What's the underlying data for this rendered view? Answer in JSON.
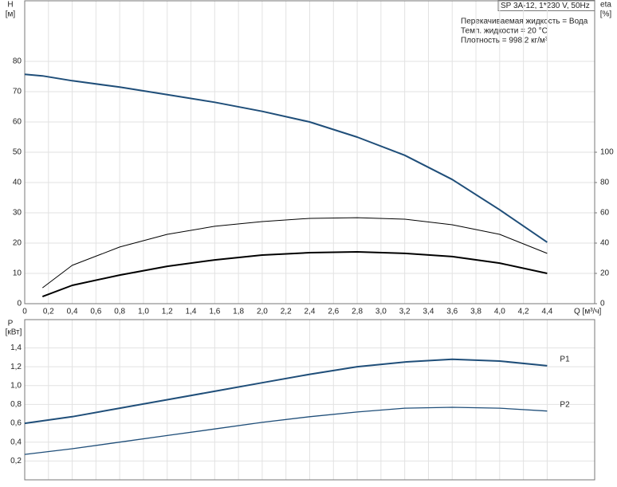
{
  "chart_data": [
    {
      "type": "line",
      "title": "SP 3A-12, 1*230 V, 50Hz",
      "notes": [
        "Перекачиваемая жидкость = Вода",
        "Темп. жидкости = 20 °C",
        "Плотность = 998.2 кг/м³"
      ],
      "ylabel": [
        "H",
        "[м]"
      ],
      "y2label": [
        "eta",
        "[%]"
      ],
      "xlabel": "Q [м³/ч]",
      "x": [
        0,
        0.15,
        0.4,
        0.8,
        1.2,
        1.6,
        2.0,
        2.4,
        2.8,
        3.2,
        3.6,
        4.0,
        4.4
      ],
      "xlim": [
        0,
        4.8
      ],
      "ylim": [
        0,
        100
      ],
      "y2lim": [
        0,
        200
      ],
      "grid": true,
      "xticks": [
        0,
        {
          "value": 0.2,
          "label": "0,2"
        },
        {
          "value": 0.4,
          "label": "0,4"
        },
        {
          "value": 0.6,
          "label": "0,6"
        },
        {
          "value": 0.8,
          "label": "0,8"
        },
        {
          "value": 1.0,
          "label": "1,0"
        },
        {
          "value": 1.2,
          "label": "1,2"
        },
        {
          "value": 1.4,
          "label": "1,4"
        },
        {
          "value": 1.6,
          "label": "1,6"
        },
        {
          "value": 1.8,
          "label": "1,8"
        },
        {
          "value": 2.0,
          "label": "2,0"
        },
        {
          "value": 2.2,
          "label": "2,2"
        },
        {
          "value": 2.4,
          "label": "2,4"
        },
        {
          "value": 2.6,
          "label": "2,6"
        },
        {
          "value": 2.8,
          "label": "2,8"
        },
        {
          "value": 3.0,
          "label": "3,0"
        },
        {
          "value": 3.2,
          "label": "3,2"
        },
        {
          "value": 3.4,
          "label": "3,4"
        },
        {
          "value": 3.6,
          "label": "3,6"
        },
        {
          "value": 3.8,
          "label": "3,8"
        },
        {
          "value": 4.0,
          "label": "4,0"
        },
        {
          "value": 4.2,
          "label": "4,2"
        },
        {
          "value": 4.4,
          "label": "4,4"
        }
      ],
      "yticks": [
        0,
        10,
        20,
        30,
        40,
        50,
        60,
        70,
        80
      ],
      "y2ticks": [
        0,
        20,
        40,
        60,
        80,
        100
      ],
      "series": [
        {
          "color": "#1f4e79",
          "line_width": 2,
          "values": [
            75.7,
            75.2,
            73.6,
            71.5,
            69,
            66.5,
            63.5,
            60,
            55,
            49,
            41,
            31,
            20.3
          ]
        },
        {
          "color": "#000000",
          "line_width": 1,
          "axis": "y2",
          "values": [
            null,
            10.5,
            25.3,
            37.4,
            45.8,
            51.1,
            54.2,
            56.3,
            56.8,
            55.8,
            52.1,
            45.8,
            33.2
          ]
        },
        {
          "color": "#000000",
          "line_width": 2,
          "axis": "y2",
          "values": [
            null,
            4.7,
            12.1,
            18.9,
            24.7,
            28.9,
            32.1,
            33.7,
            34.2,
            33.2,
            31.1,
            26.8,
            20
          ]
        }
      ]
    },
    {
      "type": "line",
      "ylabel": [
        "P",
        "[кВт]"
      ],
      "x": [
        0,
        0.4,
        0.8,
        1.2,
        1.6,
        2.0,
        2.4,
        2.8,
        3.2,
        3.6,
        4.0,
        4.4
      ],
      "xlim": [
        0,
        4.8
      ],
      "ylim": [
        0,
        1.7
      ],
      "grid": true,
      "yticks": [
        {
          "value": 0.2,
          "label": "0,2"
        },
        {
          "value": 0.4,
          "label": "0,4"
        },
        {
          "value": 0.6,
          "label": "0,6"
        },
        {
          "value": 0.8,
          "label": "0,8"
        },
        {
          "value": 1.0,
          "label": "1,0"
        },
        {
          "value": 1.2,
          "label": "1,2"
        },
        {
          "value": 1.4,
          "label": "1,4"
        }
      ],
      "series": [
        {
          "name": "P1",
          "color": "#1f4e79",
          "line_width": 2,
          "values": [
            0.6,
            0.67,
            0.76,
            0.85,
            0.94,
            1.03,
            1.12,
            1.2,
            1.25,
            1.28,
            1.26,
            1.21
          ]
        },
        {
          "name": "P2",
          "color": "#1f4e79",
          "line_width": 1.3,
          "values": [
            0.27,
            0.33,
            0.4,
            0.47,
            0.54,
            0.61,
            0.67,
            0.72,
            0.76,
            0.77,
            0.76,
            0.73
          ]
        }
      ]
    }
  ]
}
